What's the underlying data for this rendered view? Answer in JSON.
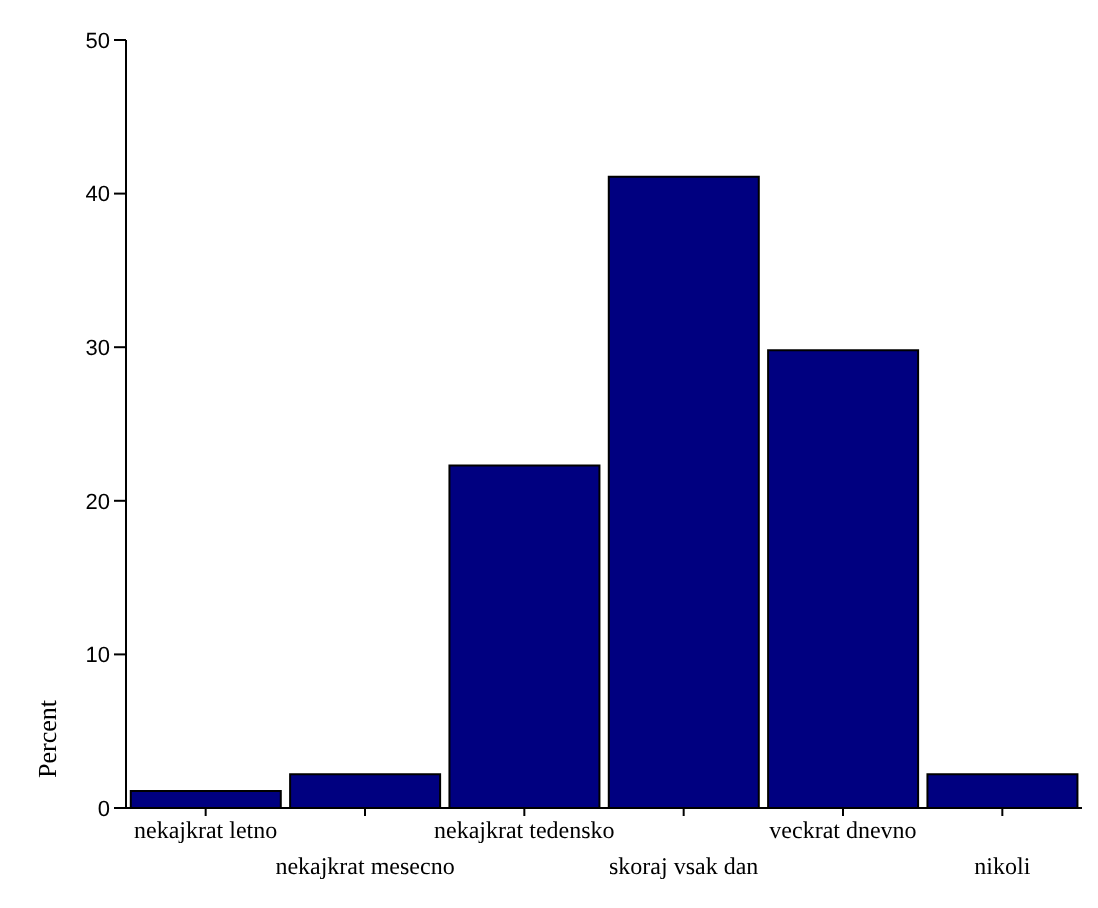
{
  "chart_data": {
    "type": "bar",
    "ylabel": "Percent",
    "categories": [
      "nekajkrat letno",
      "nekajkrat mesecno",
      "nekajkrat tedensko",
      "skoraj vsak dan",
      "veckrat dnevno",
      "nikoli"
    ],
    "values": [
      1.1,
      2.2,
      22.3,
      41.1,
      29.8,
      2.2
    ],
    "color": "#000080",
    "ylim": [
      0,
      50
    ],
    "yticks": [
      0,
      10,
      20,
      30,
      40,
      50
    ],
    "grid": false,
    "legend": false
  }
}
